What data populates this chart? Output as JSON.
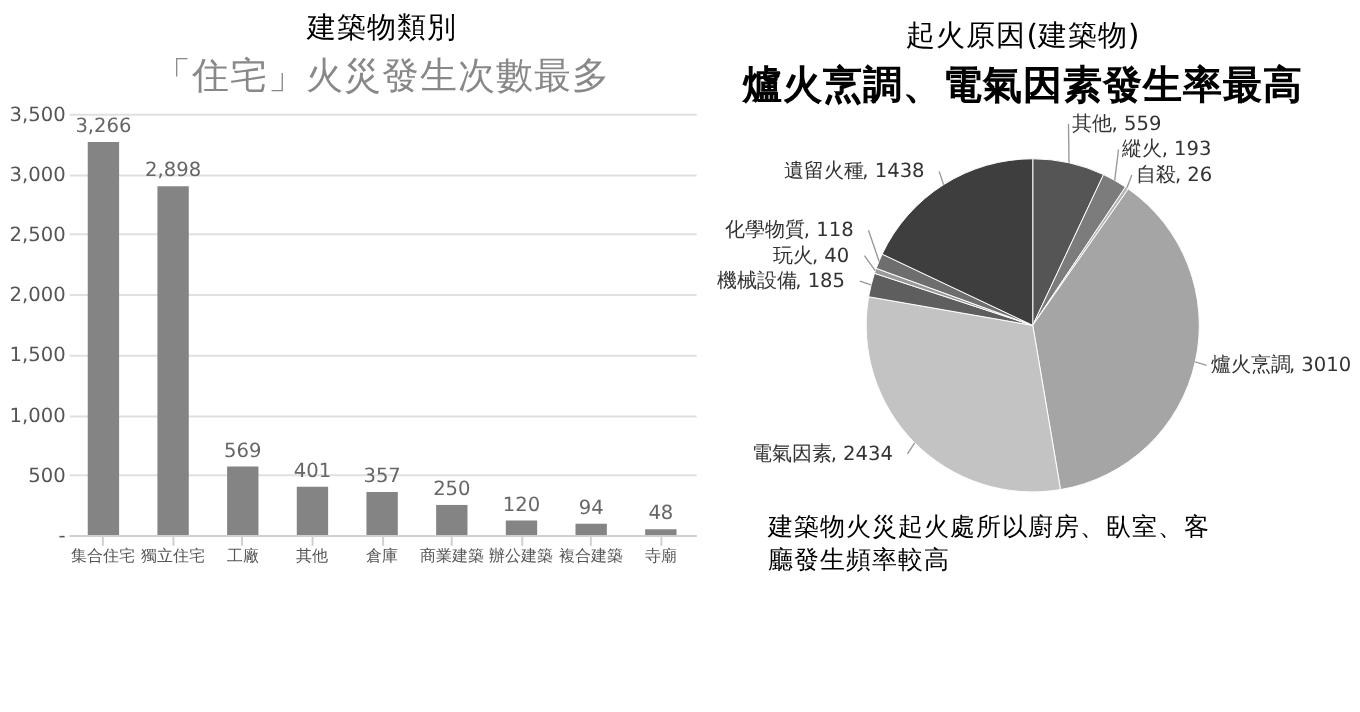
{
  "chart_data": [
    {
      "type": "bar",
      "title": "建築物類別",
      "subtitle": "「住宅」火災發生次數最多",
      "categories": [
        "集合住宅",
        "獨立住宅",
        "工廠",
        "其他",
        "倉庫",
        "商業建築",
        "辦公建築",
        "複合建築",
        "寺廟"
      ],
      "values": [
        3266,
        2898,
        569,
        401,
        357,
        250,
        120,
        94,
        48
      ],
      "color": "#848484",
      "ylim": [
        0,
        3500
      ],
      "yticks": [
        {
          "value": 0,
          "label": "-"
        },
        {
          "value": 500,
          "label": "500"
        },
        {
          "value": 1000,
          "label": "1,000"
        },
        {
          "value": 1500,
          "label": "1,500"
        },
        {
          "value": 2000,
          "label": "2,000"
        },
        {
          "value": 2500,
          "label": "2,500"
        },
        {
          "value": 3000,
          "label": "3,000"
        },
        {
          "value": 3500,
          "label": "3,500"
        }
      ],
      "value_labels": [
        "3,266",
        "2,898",
        "569",
        "401",
        "357",
        "250",
        "120",
        "94",
        "48"
      ],
      "grid": "y"
    },
    {
      "type": "pie",
      "title": "起火原因(建築物)",
      "subtitle": "爐火烹調、電氣因素發生率最高",
      "categories": [
        "其他",
        "縱火",
        "自殺",
        "爐火烹調",
        "電氣因素",
        "機械設備",
        "玩火",
        "化學物質",
        "遺留火種"
      ],
      "values": [
        559,
        193,
        26,
        3010,
        2434,
        185,
        40,
        118,
        1438
      ],
      "colors": [
        "#555555",
        "#7c7c7c",
        "#b4b4b4",
        "#a5a5a5",
        "#c3c3c3",
        "#5e5e5e",
        "#9a9a9a",
        "#6e6e6e",
        "#3e3e3e"
      ],
      "value_labels": [
        ", 559",
        ", 193",
        ", 26",
        ", 3010",
        ", 2434",
        ", 185",
        ", 40",
        ", 118",
        ", 1438"
      ],
      "annotations": [
        "建築物火災起火處所以廚房、臥室、客廳發生頻率較高"
      ]
    }
  ]
}
